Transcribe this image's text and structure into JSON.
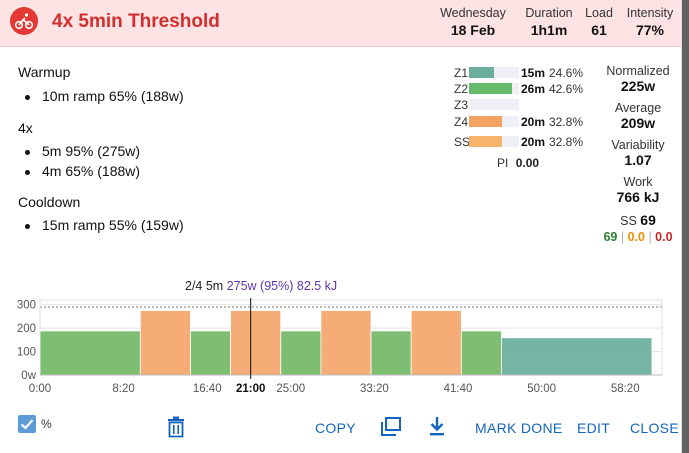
{
  "header": {
    "title": "4x 5min Threshold",
    "stats": [
      {
        "label": "Wednesday",
        "value": "18 Feb"
      },
      {
        "label": "Duration",
        "value": "1h1m"
      },
      {
        "label": "Load",
        "value": "61"
      },
      {
        "label": "Intensity",
        "value": "77%"
      }
    ]
  },
  "steps": {
    "warmup": {
      "title": "Warmup",
      "items": [
        "10m ramp 65% (188w)"
      ]
    },
    "main": {
      "title": "4x",
      "items": [
        "5m 95% (275w)",
        "4m 65% (188w)"
      ]
    },
    "cooldown": {
      "title": "Cooldown",
      "items": [
        "15m ramp 55% (159w)"
      ]
    }
  },
  "zones": [
    {
      "label": "Z1",
      "time": "15m",
      "pct": "24.6%",
      "fraction": 0.246,
      "color": "#6aae9c"
    },
    {
      "label": "Z2",
      "time": "26m",
      "pct": "42.6%",
      "fraction": 0.426,
      "color": "#66bb6a"
    },
    {
      "label": "Z3",
      "time": "",
      "pct": "",
      "fraction": 0,
      "color": "#dddddd"
    },
    {
      "label": "Z4",
      "time": "20m",
      "pct": "32.8%",
      "fraction": 0.328,
      "color": "#f4a261"
    },
    {
      "label": "SS",
      "time": "20m",
      "pct": "32.8%",
      "fraction": 0.328,
      "color": "#f6b36a"
    }
  ],
  "pi": {
    "label": "PI",
    "value": "0.00"
  },
  "summary": {
    "normalized": {
      "label": "Normalized",
      "value": "225w"
    },
    "average": {
      "label": "Average",
      "value": "209w"
    },
    "variability": {
      "label": "Variability",
      "value": "1.07"
    },
    "work": {
      "label": "Work",
      "value": "766 kJ"
    },
    "ss": {
      "label": "SS",
      "value": "69"
    },
    "ss_parts": {
      "a": "69",
      "b": "0.0",
      "c": "0.0",
      "sep": "|"
    }
  },
  "tooltip": {
    "step": "2/4 5m",
    "detail": "275w (95%) 82.5 kJ"
  },
  "chart_data": {
    "type": "bar",
    "xlabel": "",
    "ylabel": "",
    "ylim": [
      0,
      320
    ],
    "xlim_minutes": [
      0,
      62
    ],
    "y_ticks": [
      "0w",
      "100",
      "200",
      "300"
    ],
    "x_ticks": [
      "0:00",
      "8:20",
      "16:40",
      "25:00",
      "33:20",
      "41:40",
      "50:00",
      "58:20"
    ],
    "x_tick_minutes": [
      0,
      8.333,
      16.667,
      25,
      33.333,
      41.667,
      50,
      58.333
    ],
    "cursor_label": "21:00",
    "cursor_minute": 21,
    "threshold_line": 290,
    "segments": [
      {
        "start": 0,
        "end": 10,
        "power": 188,
        "zone": "Z2"
      },
      {
        "start": 10,
        "end": 15,
        "power": 275,
        "zone": "Z4"
      },
      {
        "start": 15,
        "end": 19,
        "power": 188,
        "zone": "Z2"
      },
      {
        "start": 19,
        "end": 24,
        "power": 275,
        "zone": "Z4"
      },
      {
        "start": 24,
        "end": 28,
        "power": 188,
        "zone": "Z2"
      },
      {
        "start": 28,
        "end": 33,
        "power": 275,
        "zone": "Z4"
      },
      {
        "start": 33,
        "end": 37,
        "power": 188,
        "zone": "Z2"
      },
      {
        "start": 37,
        "end": 42,
        "power": 275,
        "zone": "Z4"
      },
      {
        "start": 42,
        "end": 46,
        "power": 188,
        "zone": "Z2"
      },
      {
        "start": 46,
        "end": 61,
        "power": 159,
        "zone": "Z1"
      }
    ],
    "colors": {
      "Z1": "#6aae9c",
      "Z2": "#73b966",
      "Z4": "#f4a56a"
    }
  },
  "footer": {
    "percent_label": "%",
    "copy": "COPY",
    "mark_done": "MARK DONE",
    "edit": "EDIT",
    "close": "CLOSE"
  },
  "colors": {
    "accent": "#d32f2f",
    "link": "#1565c0",
    "tooltip_power": "#5e35b1",
    "ss_green": "#2e7d32",
    "ss_orange": "#ef8c00",
    "ss_red": "#c62828"
  }
}
